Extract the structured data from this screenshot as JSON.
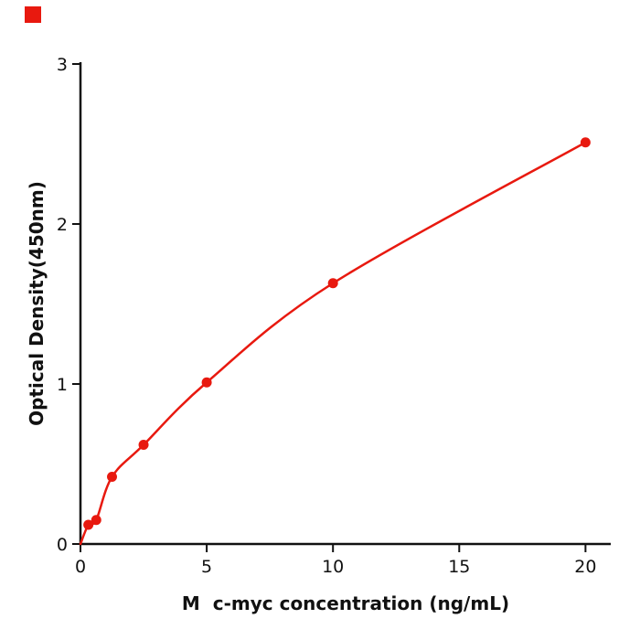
{
  "decor": {
    "corner_marker_color": "#e8190f"
  },
  "chart_data": {
    "type": "scatter",
    "title": "",
    "xlabel": "M  c-myc concentration (ng/mL)",
    "ylabel": "Optical Density(450nm)",
    "x": [
      0.313,
      0.625,
      1.25,
      2.5,
      5,
      10,
      20
    ],
    "y": [
      0.12,
      0.15,
      0.42,
      0.62,
      1.01,
      1.63,
      2.51
    ],
    "curve_start": [
      0,
      0
    ],
    "xlim": [
      0,
      21
    ],
    "ylim": [
      0,
      3
    ],
    "xticks": [
      0,
      5,
      10,
      15,
      20
    ],
    "yticks": [
      0,
      1,
      2,
      3
    ],
    "grid": false,
    "legend": null,
    "marker_color": "#e8190f",
    "line_color": "#e8190f",
    "axis_color": "#111111"
  }
}
